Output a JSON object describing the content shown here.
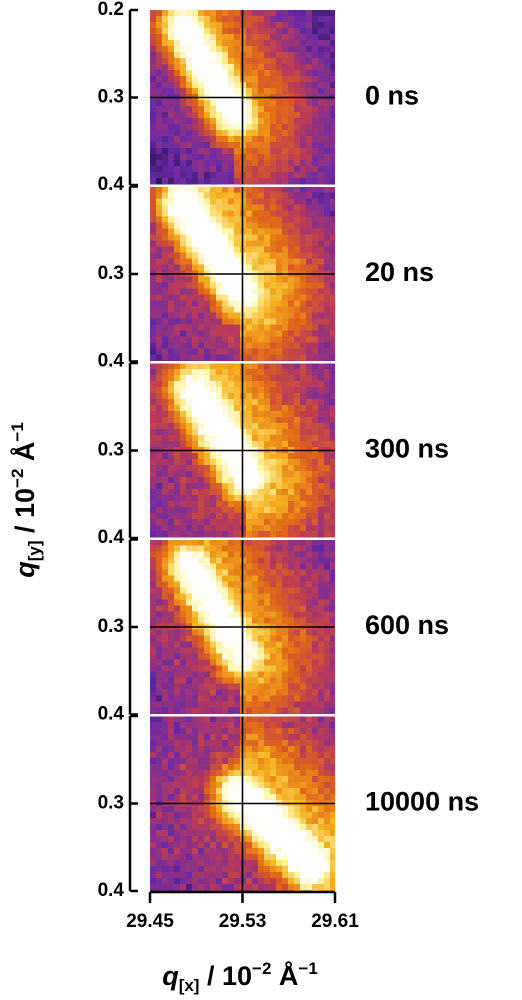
{
  "chart_data": {
    "type": "heatmap",
    "description_panels": "Five stacked reciprocal-space intensity maps at successive time delays",
    "xlabel_var": "q",
    "xlabel_sub": "[x]",
    "xlabel_unit": " / 10",
    "xlabel_exp": "−2",
    "xlabel_tail": " Å",
    "xlabel_tail_exp": "−1",
    "ylabel_var": "q",
    "ylabel_sub": "[y]",
    "ylabel_unit": " / 10",
    "ylabel_exp": "−2",
    "ylabel_tail": " Å",
    "ylabel_tail_exp": "−1",
    "x_ticks": [
      "29.45",
      "29.53",
      "29.61"
    ],
    "x_tick_values": [
      29.45,
      29.53,
      29.61
    ],
    "xlim": [
      29.45,
      29.61
    ],
    "y_ticks": [
      "0.2",
      "0.3",
      "0.4"
    ],
    "y_tick_values": [
      0.2,
      0.3,
      0.4
    ],
    "ylim": [
      0.2,
      0.4
    ],
    "y_inverted": true,
    "colormap": [
      "#1a0a3a",
      "#6a2aa8",
      "#b83a5a",
      "#e06818",
      "#f5b020",
      "#fff4a0",
      "#ffffff"
    ],
    "panels": [
      {
        "time_label": "0 ns",
        "top_y_label": "0.2",
        "mid_y_label": "0.3",
        "bottom_y_label": "0.4",
        "peak_start": [
          29.48,
          0.22
        ],
        "peak_end": [
          29.525,
          0.32
        ],
        "peak_intensity": 1.0,
        "diffuse_level": 0.55,
        "background": 0.15
      },
      {
        "time_label": "20 ns",
        "top_y_label": "",
        "mid_y_label": "0.3",
        "bottom_y_label": "0.4",
        "peak_start": [
          29.48,
          0.22
        ],
        "peak_end": [
          29.53,
          0.32
        ],
        "peak_intensity": 1.0,
        "diffuse_level": 0.65,
        "background": 0.25
      },
      {
        "time_label": "300 ns",
        "top_y_label": "",
        "mid_y_label": "0.3",
        "bottom_y_label": "0.4",
        "peak_start": [
          29.49,
          0.23
        ],
        "peak_end": [
          29.535,
          0.33
        ],
        "peak_intensity": 0.95,
        "diffuse_level": 0.6,
        "background": 0.3
      },
      {
        "time_label": "600 ns",
        "top_y_label": "",
        "mid_y_label": "0.3",
        "bottom_y_label": "0.4",
        "peak_start": [
          29.485,
          0.23
        ],
        "peak_end": [
          29.53,
          0.33
        ],
        "peak_intensity": 0.9,
        "diffuse_level": 0.55,
        "background": 0.28
      },
      {
        "time_label": "10000 ns",
        "top_y_label": "",
        "mid_y_label": "0.3",
        "bottom_y_label": "0.4",
        "peak_start": [
          29.53,
          0.29
        ],
        "peak_end": [
          29.59,
          0.37
        ],
        "peak_intensity": 1.0,
        "diffuse_level": 0.6,
        "background": 0.3
      }
    ]
  }
}
